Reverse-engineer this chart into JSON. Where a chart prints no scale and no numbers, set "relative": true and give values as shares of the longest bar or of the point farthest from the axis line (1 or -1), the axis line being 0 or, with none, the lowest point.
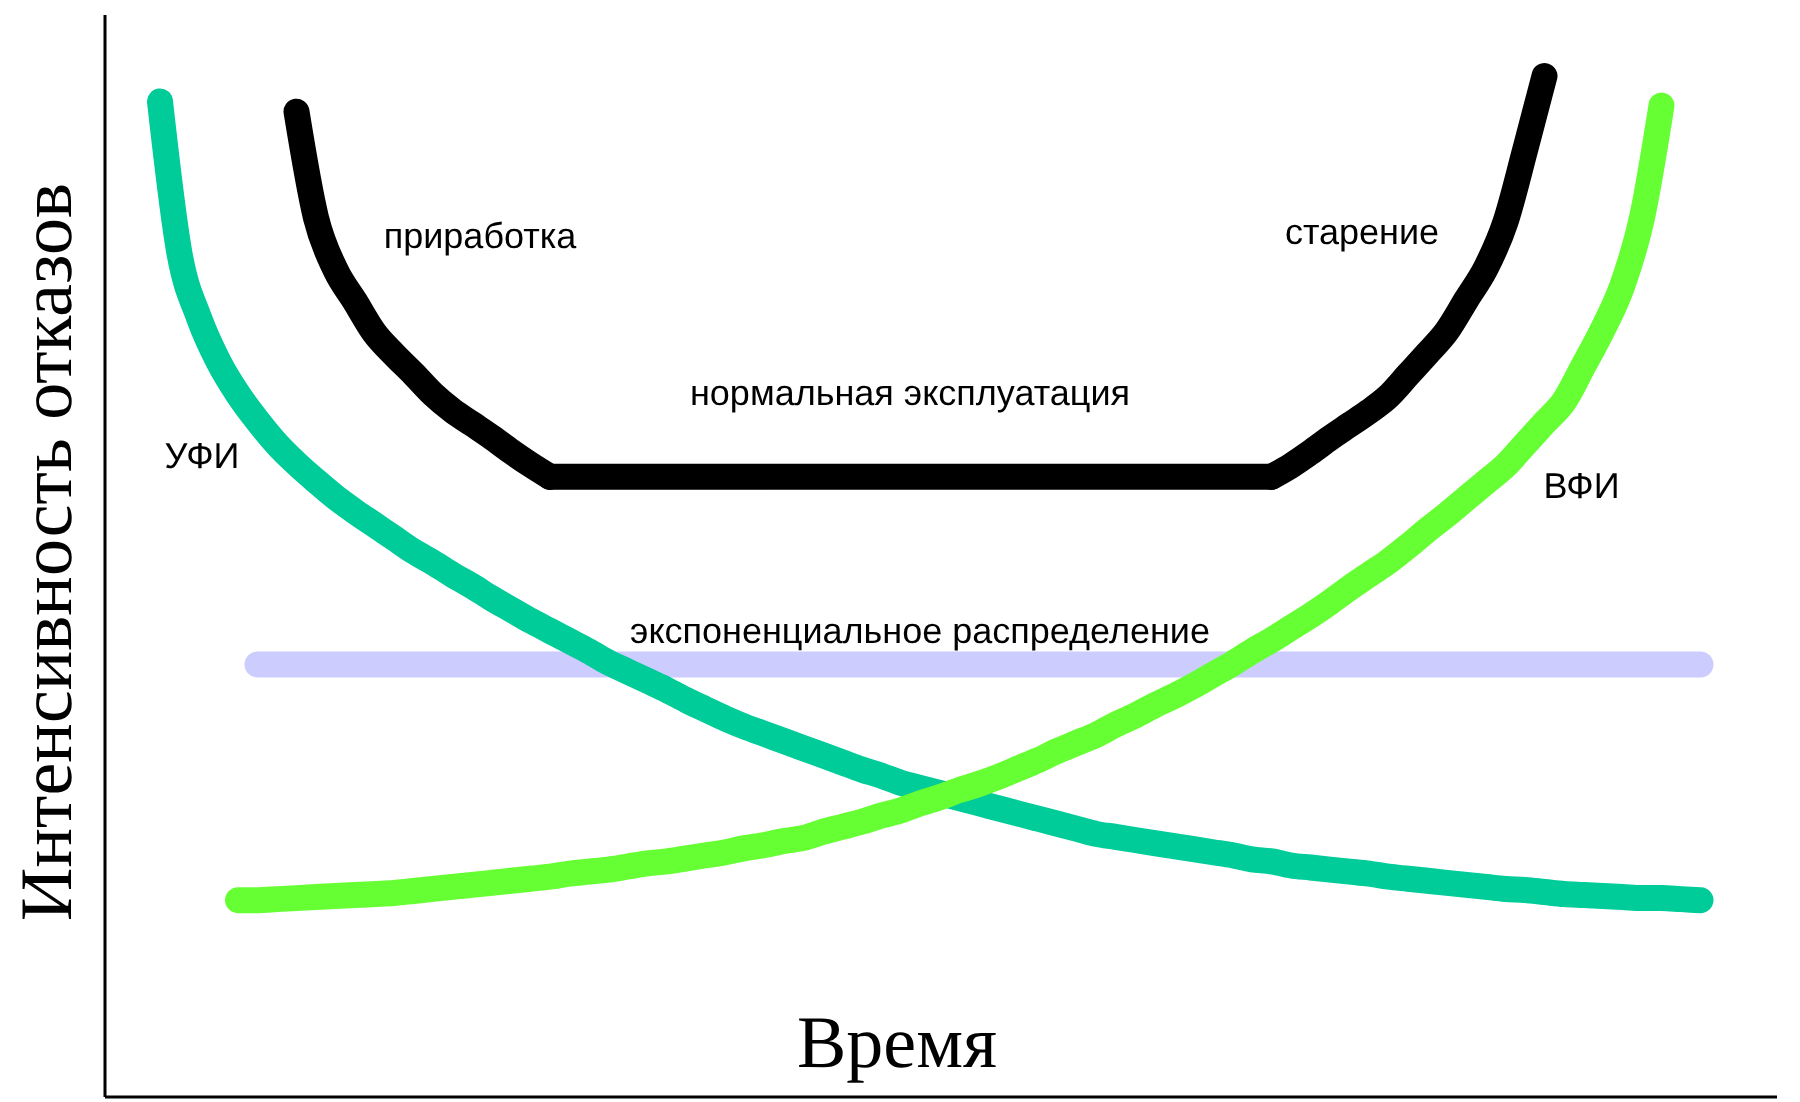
{
  "chart_data": {
    "type": "line",
    "relative": true,
    "xlabel": "Время",
    "ylabel": "Интенсивность отказов",
    "categories": [
      null,
      null,
      null,
      null,
      null,
      null,
      null,
      null,
      null,
      null,
      null,
      null,
      null,
      null,
      null,
      null,
      null,
      null,
      null,
      null,
      null,
      null,
      null,
      null,
      null,
      null,
      null,
      null,
      null,
      null,
      null,
      null,
      null,
      null,
      null,
      null,
      null,
      null,
      null,
      null,
      null,
      null,
      null,
      null,
      null,
      null,
      null,
      null,
      null,
      null,
      null,
      null,
      null,
      null,
      null,
      null,
      null,
      null,
      null,
      null,
      null,
      null,
      null,
      null,
      null,
      null,
      null,
      null,
      null,
      null,
      null,
      null,
      null,
      null,
      null,
      null,
      null,
      null,
      null,
      null,
      null,
      null,
      null,
      null,
      null
    ],
    "series": [
      {
        "name": "экспоненциальное распределение",
        "color": "#ccccff",
        "values": [
          null,
          null,
          null,
          null,
          null,
          null,
          null,
          0.423,
          0.423,
          0.423,
          0.423,
          0.423,
          0.423,
          0.423,
          0.423,
          0.423,
          0.423,
          0.423,
          0.423,
          0.423,
          0.423,
          0.423,
          0.423,
          0.423,
          0.423,
          0.423,
          0.423,
          0.423,
          0.423,
          0.423,
          0.423,
          0.423,
          0.423,
          0.423,
          0.423,
          0.423,
          0.423,
          0.423,
          0.423,
          0.423,
          0.423,
          0.423,
          0.423,
          0.423,
          0.423,
          0.423,
          0.423,
          0.423,
          0.423,
          0.423,
          0.423,
          0.423,
          0.423,
          0.423,
          0.423,
          0.423,
          0.423,
          0.423,
          0.423,
          0.423,
          0.423,
          0.423,
          0.423,
          0.423,
          0.423,
          0.423,
          0.423,
          0.423,
          0.423,
          0.423,
          0.423,
          0.423,
          0.423,
          0.423,
          0.423,
          0.423,
          0.423,
          0.423,
          0.423,
          0.423,
          0.423,
          0.423,
          null,
          null,
          null
        ]
      },
      {
        "name": "УФИ",
        "color": "#00cc99",
        "values": [
          null,
          null,
          0.975,
          0.826,
          0.763,
          0.72,
          0.688,
          0.662,
          0.639,
          0.62,
          0.603,
          0.587,
          0.573,
          0.56,
          0.547,
          0.534,
          0.523,
          0.511,
          0.5,
          0.488,
          0.477,
          0.466,
          0.456,
          0.446,
          0.436,
          0.425,
          0.416,
          0.407,
          0.398,
          0.388,
          0.379,
          0.37,
          0.362,
          0.355,
          0.348,
          0.341,
          0.334,
          0.327,
          0.32,
          0.314,
          0.307,
          0.302,
          0.297,
          0.292,
          0.287,
          0.282,
          0.277,
          0.272,
          0.267,
          0.262,
          0.257,
          0.254,
          0.251,
          0.248,
          0.245,
          0.242,
          0.239,
          0.236,
          0.232,
          0.23,
          0.226,
          0.224,
          0.222,
          0.22,
          0.218,
          0.215,
          0.213,
          0.211,
          0.209,
          0.207,
          0.205,
          0.203,
          0.202,
          0.2,
          0.198,
          0.197,
          0.196,
          0.195,
          0.194,
          0.194,
          0.193,
          0.192,
          null,
          null,
          null
        ]
      },
      {
        "name": "ВФИ",
        "color": "#66ff33",
        "values": [
          null,
          null,
          null,
          null,
          null,
          null,
          0.192,
          0.192,
          0.193,
          0.194,
          0.195,
          0.196,
          0.197,
          0.198,
          0.199,
          0.201,
          0.203,
          0.205,
          0.207,
          0.209,
          0.211,
          0.213,
          0.215,
          0.218,
          0.22,
          0.222,
          0.225,
          0.228,
          0.23,
          0.233,
          0.236,
          0.239,
          0.243,
          0.246,
          0.25,
          0.253,
          0.259,
          0.264,
          0.269,
          0.275,
          0.28,
          0.287,
          0.293,
          0.3,
          0.306,
          0.313,
          0.321,
          0.329,
          0.338,
          0.346,
          0.354,
          0.364,
          0.373,
          0.383,
          0.392,
          0.402,
          0.413,
          0.424,
          0.436,
          0.447,
          0.459,
          0.471,
          0.484,
          0.498,
          0.511,
          0.524,
          0.539,
          0.555,
          0.57,
          0.586,
          0.602,
          0.618,
          0.639,
          0.66,
          0.681,
          0.716,
          0.752,
          0.795,
          0.861,
          0.971,
          null,
          null,
          null,
          null,
          null
        ]
      },
      {
        "name": "приработка",
        "color": "#000000",
        "values": [
          null,
          null,
          null,
          null,
          null,
          null,
          null,
          null,
          null,
          0.965,
          0.861,
          0.81,
          0.779,
          0.748,
          0.727,
          0.708,
          0.688,
          0.672,
          0.659,
          0.646,
          0.632,
          0.619,
          0.607,
          null,
          null,
          null,
          null,
          null,
          null,
          null,
          null,
          null,
          null,
          null,
          null,
          null,
          null,
          null,
          null,
          null,
          null,
          null,
          null,
          null,
          null,
          null,
          null,
          null,
          null,
          null,
          null,
          null,
          null,
          null,
          null,
          null,
          null,
          null,
          null,
          null,
          null,
          null,
          null,
          null,
          null,
          null,
          null,
          null,
          null,
          null,
          null,
          null,
          null,
          null,
          null,
          null,
          null,
          null,
          null,
          null,
          null,
          null,
          null,
          null,
          null
        ]
      },
      {
        "name": "нормальная эксплуатация",
        "color": "#000000",
        "values": [
          null,
          null,
          null,
          null,
          null,
          null,
          null,
          null,
          null,
          null,
          null,
          null,
          null,
          null,
          null,
          null,
          null,
          null,
          null,
          null,
          null,
          null,
          0.607,
          0.607,
          0.607,
          0.607,
          0.607,
          0.607,
          0.607,
          0.607,
          0.607,
          0.607,
          0.607,
          0.607,
          0.607,
          0.607,
          0.607,
          0.607,
          0.607,
          0.607,
          0.607,
          0.607,
          0.607,
          0.607,
          0.607,
          0.607,
          0.607,
          0.607,
          0.607,
          0.607,
          0.607,
          0.607,
          0.607,
          0.607,
          0.607,
          0.607,
          0.607,
          0.607,
          0.607,
          0.607,
          null,
          null,
          null,
          null,
          null,
          null,
          null,
          null,
          null,
          null,
          null,
          null,
          null,
          null,
          null,
          null,
          null,
          null,
          null,
          null,
          null,
          null,
          null,
          null,
          null
        ]
      },
      {
        "name": "старение",
        "color": "#000000",
        "values": [
          null,
          null,
          null,
          null,
          null,
          null,
          null,
          null,
          null,
          null,
          null,
          null,
          null,
          null,
          null,
          null,
          null,
          null,
          null,
          null,
          null,
          null,
          null,
          null,
          null,
          null,
          null,
          null,
          null,
          null,
          null,
          null,
          null,
          null,
          null,
          null,
          null,
          null,
          null,
          null,
          null,
          null,
          null,
          null,
          null,
          null,
          null,
          null,
          null,
          null,
          null,
          null,
          null,
          null,
          null,
          null,
          null,
          null,
          null,
          0.607,
          0.618,
          0.631,
          0.645,
          0.658,
          0.671,
          0.686,
          0.707,
          0.728,
          0.75,
          0.781,
          0.812,
          0.857,
          0.927,
          1,
          null,
          null,
          null,
          null,
          null,
          null,
          null,
          null,
          null,
          null,
          null
        ]
      }
    ]
  }
}
